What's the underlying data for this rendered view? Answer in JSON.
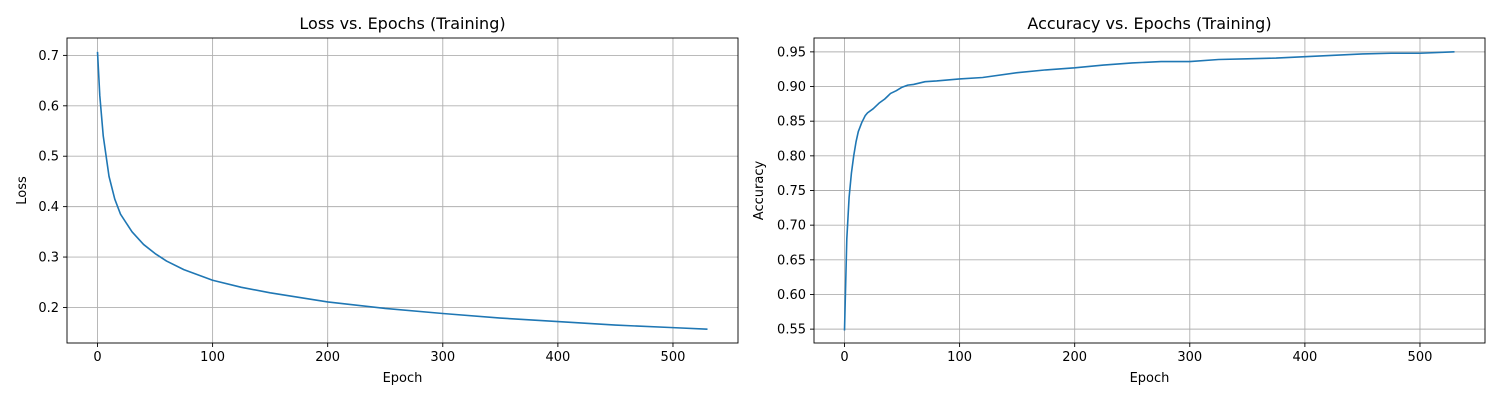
{
  "chart_data": [
    {
      "type": "line",
      "title": "Loss vs. Epochs (Training)",
      "xlabel": "Epoch",
      "ylabel": "Loss",
      "xlim": [
        -26.5,
        556.5
      ],
      "ylim": [
        0.1295,
        0.7345
      ],
      "xticks": [
        0,
        100,
        200,
        300,
        400,
        500
      ],
      "yticks": [
        0.2,
        0.3,
        0.4,
        0.5,
        0.6,
        0.7
      ],
      "ytick_labels": [
        "0.2",
        "0.3",
        "0.4",
        "0.5",
        "0.6",
        "0.7"
      ],
      "grid": true,
      "line_color": "#1f77b4",
      "series": [
        {
          "x": [
            0,
            2,
            5,
            10,
            15,
            20,
            30,
            40,
            50,
            60,
            75,
            100,
            125,
            150,
            200,
            250,
            300,
            350,
            400,
            450,
            500,
            530
          ],
          "values": [
            0.707,
            0.62,
            0.54,
            0.46,
            0.415,
            0.385,
            0.35,
            0.325,
            0.307,
            0.292,
            0.275,
            0.254,
            0.24,
            0.229,
            0.211,
            0.198,
            0.188,
            0.179,
            0.172,
            0.165,
            0.16,
            0.157
          ]
        }
      ]
    },
    {
      "type": "line",
      "title": "Accuracy vs. Epochs (Training)",
      "xlabel": "Epoch",
      "ylabel": "Accuracy",
      "xlim": [
        -26.5,
        556.5
      ],
      "ylim": [
        0.53,
        0.97
      ],
      "xticks": [
        0,
        100,
        200,
        300,
        400,
        500
      ],
      "yticks": [
        0.55,
        0.6,
        0.65,
        0.7,
        0.75,
        0.8,
        0.85,
        0.9,
        0.95
      ],
      "ytick_labels": [
        "0.55",
        "0.60",
        "0.65",
        "0.70",
        "0.75",
        "0.80",
        "0.85",
        "0.90",
        "0.95"
      ],
      "grid": true,
      "line_color": "#1f77b4",
      "series": [
        {
          "x": [
            0,
            2,
            4,
            6,
            8,
            10,
            12,
            15,
            18,
            20,
            25,
            30,
            35,
            40,
            45,
            50,
            55,
            60,
            70,
            80,
            100,
            120,
            150,
            175,
            200,
            225,
            250,
            275,
            300,
            325,
            350,
            375,
            400,
            425,
            450,
            475,
            500,
            530
          ],
          "values": [
            0.548,
            0.68,
            0.74,
            0.775,
            0.8,
            0.82,
            0.835,
            0.848,
            0.858,
            0.862,
            0.868,
            0.876,
            0.882,
            0.89,
            0.894,
            0.899,
            0.902,
            0.903,
            0.907,
            0.908,
            0.911,
            0.913,
            0.92,
            0.924,
            0.927,
            0.931,
            0.934,
            0.936,
            0.936,
            0.939,
            0.94,
            0.941,
            0.943,
            0.945,
            0.947,
            0.948,
            0.948,
            0.95
          ]
        }
      ]
    }
  ]
}
